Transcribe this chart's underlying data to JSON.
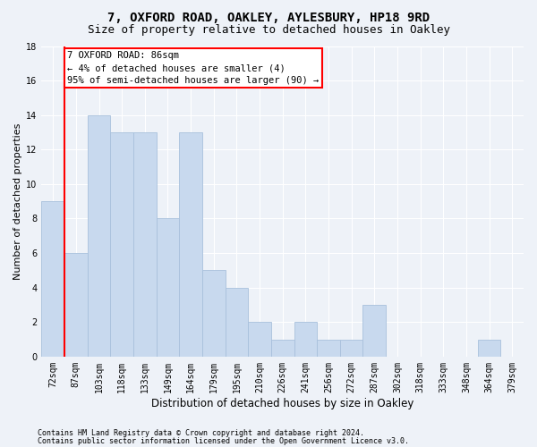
{
  "title1": "7, OXFORD ROAD, OAKLEY, AYLESBURY, HP18 9RD",
  "title2": "Size of property relative to detached houses in Oakley",
  "xlabel": "Distribution of detached houses by size in Oakley",
  "ylabel": "Number of detached properties",
  "categories": [
    "72sqm",
    "87sqm",
    "103sqm",
    "118sqm",
    "133sqm",
    "149sqm",
    "164sqm",
    "179sqm",
    "195sqm",
    "210sqm",
    "226sqm",
    "241sqm",
    "256sqm",
    "272sqm",
    "287sqm",
    "302sqm",
    "318sqm",
    "333sqm",
    "348sqm",
    "364sqm",
    "379sqm"
  ],
  "values": [
    9,
    6,
    14,
    13,
    13,
    8,
    13,
    5,
    4,
    2,
    1,
    2,
    1,
    1,
    3,
    0,
    0,
    0,
    0,
    1,
    0
  ],
  "bar_color": "#c8d9ee",
  "bar_edgecolor": "#a8c0dc",
  "ylim": [
    0,
    18
  ],
  "yticks": [
    0,
    2,
    4,
    6,
    8,
    10,
    12,
    14,
    16,
    18
  ],
  "annotation_line1": "7 OXFORD ROAD: 86sqm",
  "annotation_line2": "← 4% of detached houses are smaller (4)",
  "annotation_line3": "95% of semi-detached houses are larger (90) →",
  "annotation_box_color": "white",
  "annotation_box_edgecolor": "red",
  "footnote1": "Contains HM Land Registry data © Crown copyright and database right 2024.",
  "footnote2": "Contains public sector information licensed under the Open Government Licence v3.0.",
  "bg_color": "#eef2f8",
  "plot_bg_color": "#eef2f8",
  "grid_color": "white",
  "title1_fontsize": 10,
  "title2_fontsize": 9,
  "ylabel_fontsize": 8,
  "xlabel_fontsize": 8.5,
  "tick_fontsize": 7,
  "annot_fontsize": 7.5,
  "footnote_fontsize": 6
}
